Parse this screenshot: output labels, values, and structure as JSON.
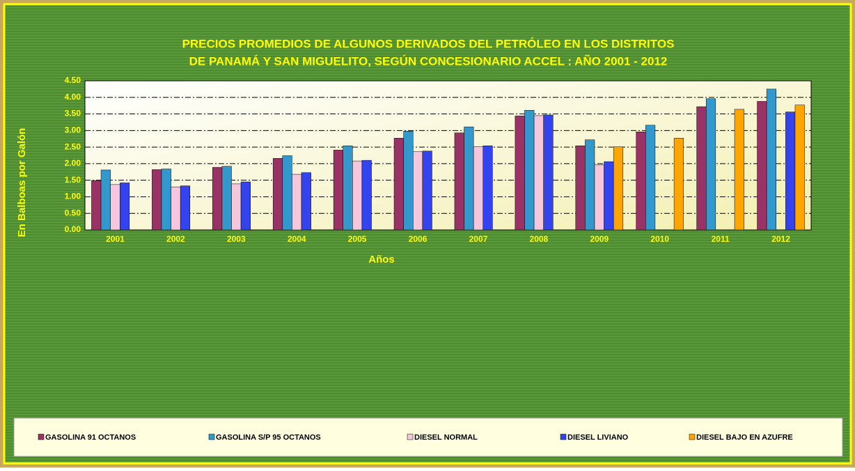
{
  "chart_data": {
    "type": "bar",
    "title": [
      "PRECIOS PROMEDIOS DE ALGUNOS DERIVADOS DEL PETRÓLEO EN LOS DISTRITOS",
      "DE PANAMÁ Y SAN MIGUELITO, SEGÚN CONCESIONARIO ACCEL : AÑO 2001 - 2012"
    ],
    "x_label": "Años",
    "y_label": "En Balboas por Galón",
    "categories": [
      "2001",
      "2002",
      "2003",
      "2004",
      "2005",
      "2006",
      "2007",
      "2008",
      "2009",
      "2010",
      "2011",
      "2012"
    ],
    "series": [
      {
        "name": "GASOLINA 91 OCTANOS",
        "color": "#993366",
        "values": [
          1.49,
          1.82,
          1.89,
          2.16,
          2.41,
          2.77,
          2.93,
          3.44,
          2.54,
          2.96,
          3.72,
          3.88
        ]
      },
      {
        "name": "GASOLINA S/P 95 OCTANOS",
        "color": "#3399cc",
        "values": [
          1.81,
          1.84,
          1.92,
          2.24,
          2.54,
          2.98,
          3.11,
          3.61,
          2.72,
          3.16,
          3.96,
          4.25
        ]
      },
      {
        "name": "DIESEL NORMAL",
        "color": "#f5c6dc",
        "values": [
          1.37,
          1.3,
          1.39,
          1.68,
          2.08,
          2.36,
          2.51,
          3.45,
          1.96,
          null,
          null,
          null
        ]
      },
      {
        "name": "DIESEL LIVIANO",
        "color": "#3344ee",
        "values": [
          1.42,
          1.33,
          1.45,
          1.73,
          2.1,
          2.38,
          2.54,
          3.47,
          2.06,
          null,
          null,
          3.56
        ]
      },
      {
        "name": "DIESEL BAJO EN AZUFRE",
        "color": "#ffa500",
        "values": [
          null,
          null,
          null,
          null,
          null,
          null,
          null,
          null,
          2.51,
          2.77,
          3.64,
          3.77
        ]
      }
    ],
    "ylim": [
      0,
      4.5
    ],
    "yticks": [
      {
        "value": 0,
        "label": "0.00"
      },
      {
        "value": 0.5,
        "label": "0.50"
      },
      {
        "value": 1,
        "label": "1.00"
      },
      {
        "value": 1.5,
        "label": "1.50"
      },
      {
        "value": 2,
        "label": "2.00"
      },
      {
        "value": 2.5,
        "label": "2.50"
      },
      {
        "value": 3,
        "label": "3.00"
      },
      {
        "value": 3.5,
        "label": "3.50"
      },
      {
        "value": 4,
        "label": "4.00"
      },
      {
        "value": 4.5,
        "label": "4.50"
      }
    ],
    "grid": true,
    "legend": "bottom"
  }
}
